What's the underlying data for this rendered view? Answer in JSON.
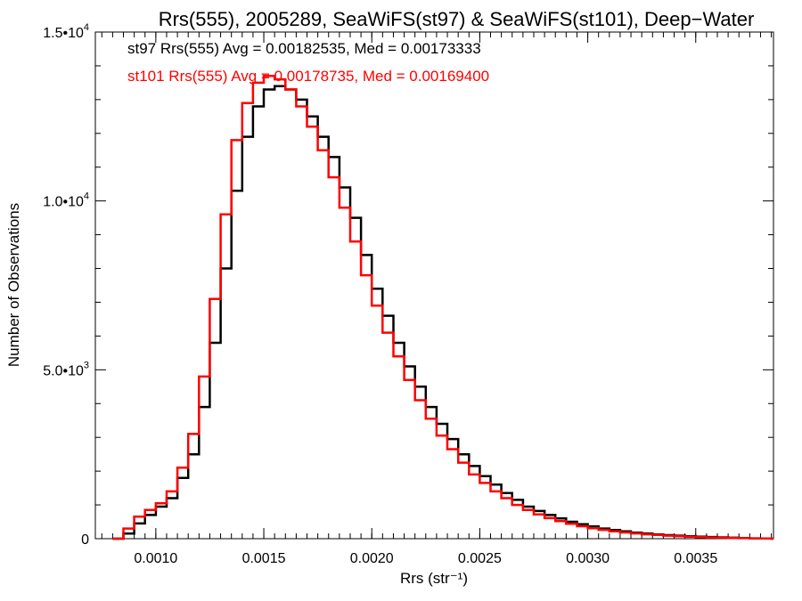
{
  "chart_data": {
    "type": "line",
    "title": "Rrs(555), 2005289, SeaWiFS(st97) & SeaWiFS(st101), Deep−Water",
    "xlabel": "Rrs (str⁻¹)",
    "ylabel": "Number of Observations",
    "xlim": [
      0.00072,
      0.00386
    ],
    "ylim": [
      0,
      15000
    ],
    "x_ticks": [
      {
        "value": 0.001,
        "label": "0.0010"
      },
      {
        "value": 0.0015,
        "label": "0.0015"
      },
      {
        "value": 0.002,
        "label": "0.0020"
      },
      {
        "value": 0.0025,
        "label": "0.0025"
      },
      {
        "value": 0.003,
        "label": "0.0030"
      },
      {
        "value": 0.0035,
        "label": "0.0035"
      }
    ],
    "y_ticks": [
      {
        "value": 0,
        "base": "0",
        "exp": ""
      },
      {
        "value": 5000,
        "base": "5.0•10",
        "exp": "3"
      },
      {
        "value": 10000,
        "base": "1.0•10",
        "exp": "4"
      },
      {
        "value": 15000,
        "base": "1.5•10",
        "exp": "4"
      }
    ],
    "grid": false,
    "step": true,
    "annotations": [
      {
        "text": "st97 Rrs(555) Avg = 0.00182535, Med = 0.00173333",
        "color": "#000000"
      },
      {
        "text": "st101 Rrs(555) Avg = 0.00178735, Med = 0.00169400",
        "color": "#ff0000"
      }
    ],
    "series": [
      {
        "color": "#000000",
        "x": [
          0.0008,
          0.00085,
          0.0009,
          0.00095,
          0.001,
          0.00105,
          0.0011,
          0.00115,
          0.0012,
          0.00125,
          0.0013,
          0.00135,
          0.0014,
          0.00145,
          0.0015,
          0.00155,
          0.0016,
          0.00165,
          0.0017,
          0.00175,
          0.0018,
          0.00185,
          0.0019,
          0.00195,
          0.002,
          0.00205,
          0.0021,
          0.00215,
          0.0022,
          0.00225,
          0.0023,
          0.00235,
          0.0024,
          0.00245,
          0.0025,
          0.00255,
          0.0026,
          0.00265,
          0.0027,
          0.00275,
          0.0028,
          0.00285,
          0.0029,
          0.00295,
          0.003,
          0.00305,
          0.0031,
          0.00315,
          0.0032,
          0.00325,
          0.0033,
          0.00335,
          0.0034,
          0.00345,
          0.0035,
          0.00355,
          0.0036,
          0.00365,
          0.0037,
          0.00375,
          0.0038,
          0.00385
        ],
        "values": [
          0,
          150,
          450,
          700,
          950,
          1200,
          1800,
          2500,
          3900,
          5800,
          8000,
          10300,
          11900,
          12800,
          13300,
          13400,
          13300,
          13000,
          12500,
          11900,
          11300,
          10400,
          9500,
          8400,
          7400,
          6600,
          5800,
          5100,
          4500,
          3900,
          3400,
          2950,
          2500,
          2150,
          1850,
          1600,
          1350,
          1150,
          950,
          820,
          700,
          600,
          500,
          430,
          360,
          300,
          255,
          215,
          180,
          150,
          125,
          105,
          90,
          75,
          60,
          50,
          40,
          30,
          20,
          10,
          5,
          0
        ]
      },
      {
        "color": "#ff0000",
        "x": [
          0.0008,
          0.00085,
          0.0009,
          0.00095,
          0.001,
          0.00105,
          0.0011,
          0.00115,
          0.0012,
          0.00125,
          0.0013,
          0.00135,
          0.0014,
          0.00145,
          0.0015,
          0.00155,
          0.0016,
          0.00165,
          0.0017,
          0.00175,
          0.0018,
          0.00185,
          0.0019,
          0.00195,
          0.002,
          0.00205,
          0.0021,
          0.00215,
          0.0022,
          0.00225,
          0.0023,
          0.00235,
          0.0024,
          0.00245,
          0.0025,
          0.00255,
          0.0026,
          0.00265,
          0.0027,
          0.00275,
          0.0028,
          0.00285,
          0.0029,
          0.00295,
          0.003,
          0.00305,
          0.0031,
          0.00315,
          0.0032,
          0.00325,
          0.0033,
          0.00335,
          0.0034,
          0.00345,
          0.0035,
          0.00355,
          0.0036,
          0.00365,
          0.0037,
          0.00375,
          0.0038,
          0.00385
        ],
        "values": [
          0,
          300,
          650,
          850,
          1050,
          1400,
          2100,
          3100,
          4800,
          7100,
          9600,
          11800,
          12900,
          13500,
          13700,
          13600,
          13300,
          12800,
          12200,
          11500,
          10700,
          9800,
          8800,
          7800,
          6900,
          6100,
          5400,
          4700,
          4100,
          3550,
          3050,
          2650,
          2250,
          1900,
          1650,
          1400,
          1200,
          1000,
          850,
          720,
          610,
          520,
          440,
          370,
          310,
          260,
          220,
          185,
          155,
          130,
          110,
          90,
          75,
          60,
          48,
          38,
          30,
          22,
          15,
          8,
          4,
          0
        ]
      }
    ]
  }
}
